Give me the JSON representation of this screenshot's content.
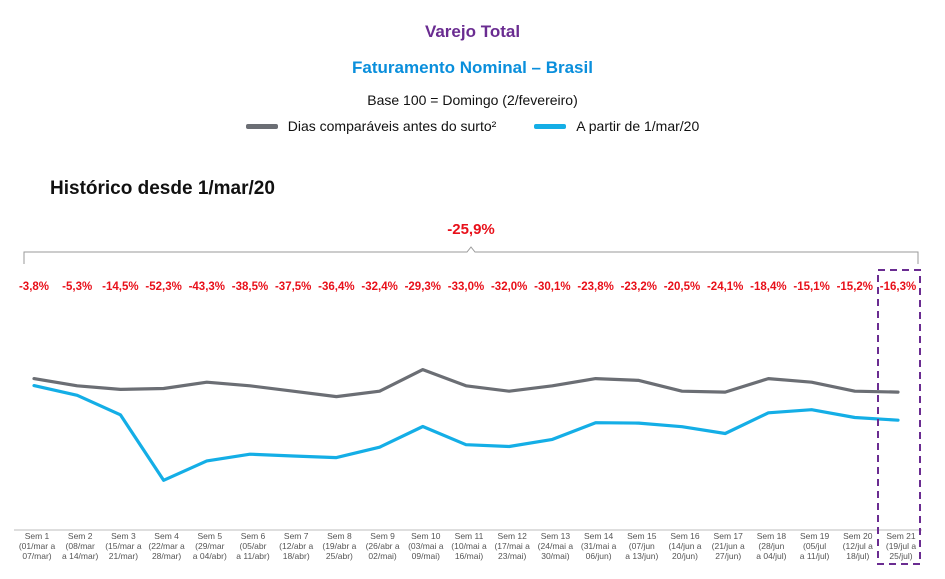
{
  "header": {
    "title": "Varejo Total",
    "subtitle": "Faturamento Nominal – Brasil",
    "base_note": "Base 100 = Domingo (2/fevereiro)"
  },
  "section_title": "Histórico desde 1/mar/20",
  "colors": {
    "gray_series": "#6b6e74",
    "blue_series": "#14aee6",
    "highlight": "#6a2c91",
    "negative": "#e8101a"
  },
  "chart_data": {
    "type": "line",
    "total_change": "-25,9%",
    "categories": [
      [
        "Sem 1",
        "(01/mar a",
        "07/mar)"
      ],
      [
        "Sem 2",
        "(08/mar",
        "a 14/mar)"
      ],
      [
        "Sem 3",
        "(15/mar a",
        "21/mar)"
      ],
      [
        "Sem 4",
        "(22/mar a",
        "28/mar)"
      ],
      [
        "Sem 5",
        "(29/mar",
        "a 04/abr)"
      ],
      [
        "Sem 6",
        "(05/abr",
        "a 11/abr)"
      ],
      [
        "Sem 7",
        "(12/abr a",
        "18/abr)"
      ],
      [
        "Sem 8",
        "(19/abr a",
        "25/abr)"
      ],
      [
        "Sem 9",
        "(26/abr a",
        "02/mai)"
      ],
      [
        "Sem 10",
        "(03/mai a",
        "09/mai)"
      ],
      [
        "Sem 11",
        "(10/mai a",
        "16/mai)"
      ],
      [
        "Sem 12",
        "(17/mai a",
        "23/mai)"
      ],
      [
        "Sem 13",
        "(24/mai a",
        "30/mai)"
      ],
      [
        "Sem 14",
        "(31/mai a",
        "06/jun)"
      ],
      [
        "Sem 15",
        "(07/jun",
        "a 13/jun)"
      ],
      [
        "Sem 16",
        "(14/jun a",
        "20/jun)"
      ],
      [
        "Sem 17",
        "(21/jun a",
        "27/jun)"
      ],
      [
        "Sem 18",
        "(28/jun",
        "a 04/jul)"
      ],
      [
        "Sem 19",
        "(05/jul",
        "a 11/jul)"
      ],
      [
        "Sem 20",
        "(12/jul a",
        "18/jul)"
      ],
      [
        "Sem 21",
        "(19/jul a",
        "25/jul)"
      ]
    ],
    "changes": [
      "-3,8%",
      "-5,3%",
      "-14,5%",
      "-52,3%",
      "-43,3%",
      "-38,5%",
      "-37,5%",
      "-36,4%",
      "-32,4%",
      "-29,3%",
      "-33,0%",
      "-32,0%",
      "-30,1%",
      "-23,8%",
      "-23,2%",
      "-20,5%",
      "-24,1%",
      "-18,4%",
      "-15,1%",
      "-15,2%",
      "-16,3%"
    ],
    "series": [
      {
        "name": "Dias comparáveis antes do surto²",
        "color": "#6b6e74",
        "values": [
          103,
          99,
          97,
          97.5,
          101,
          99,
          96,
          93,
          96,
          108,
          99,
          96,
          99,
          103,
          102,
          96,
          95.5,
          103,
          101,
          96,
          95.5
        ]
      },
      {
        "name": "A partir de 1/mar/20",
        "color": "#14aee6",
        "values": [
          99.1,
          93.7,
          82.9,
          46.5,
          57.3,
          61.0,
          60.0,
          59.1,
          64.9,
          76.4,
          66.3,
          65.3,
          69.2,
          78.5,
          78.3,
          76.3,
          72.5,
          84.0,
          85.7,
          81.4,
          79.9
        ]
      }
    ],
    "ylim": [
      30,
      130
    ],
    "highlight_last": true
  }
}
